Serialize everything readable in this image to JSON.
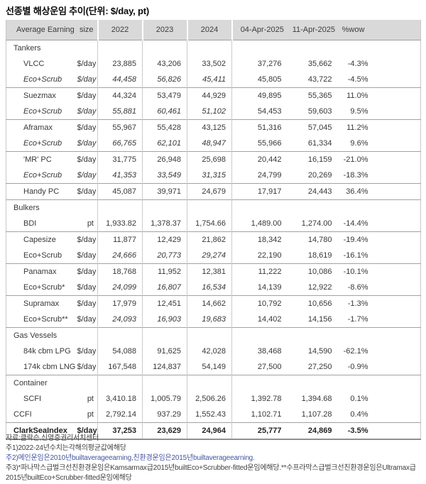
{
  "title": "선종별 해상운임 추이(단위: $/day, pt)",
  "colors": {
    "header_bg": "#d9d9d9",
    "body_text": "#383838",
    "group_line": "#a2a2a2",
    "note2_text": "#44549e"
  },
  "table": {
    "header": {
      "col_label": "Average Earning",
      "col_size": "size",
      "col_2022": "2022",
      "col_2023": "2023",
      "col_2024": "2024",
      "col_date1": "04-Apr-2025",
      "col_date2": "11-Apr-2025",
      "col_wow": "%wow"
    },
    "rows": [
      {
        "section": true,
        "label": "Tankers"
      },
      {
        "label": "VLCC",
        "unit": "$/day",
        "indent": 1,
        "values": [
          "23,885",
          "43,206",
          "33,502",
          "37,276",
          "35,662",
          "-4.3%"
        ]
      },
      {
        "label": "Eco+Scrub",
        "unit": "$/day",
        "indent": 1,
        "italic_label": true,
        "italic_values": true,
        "values": [
          "44,458",
          "56,826",
          "45,411",
          "45,805",
          "43,722",
          "-4.5%"
        ]
      },
      {
        "label": "Suezmax",
        "unit": "$/day",
        "indent": 1,
        "line": true,
        "values": [
          "44,324",
          "53,479",
          "44,929",
          "49,895",
          "55,365",
          "11.0%"
        ]
      },
      {
        "label": "Eco+Scrub",
        "unit": "$/day",
        "indent": 1,
        "italic_label": true,
        "italic_values": true,
        "values": [
          "55,881",
          "60,461",
          "51,102",
          "54,453",
          "59,603",
          "9.5%"
        ]
      },
      {
        "label": "Aframax",
        "unit": "$/day",
        "indent": 1,
        "line": true,
        "values": [
          "55,967",
          "55,428",
          "43,125",
          "51,316",
          "57,045",
          "11.2%"
        ]
      },
      {
        "label": "Eco+Scrub",
        "unit": "$/day",
        "indent": 1,
        "italic_label": true,
        "italic_values": true,
        "values": [
          "66,765",
          "62,101",
          "48,947",
          "55,966",
          "61,334",
          "9.6%"
        ]
      },
      {
        "label": "'MR' PC",
        "unit": "$/day",
        "indent": 1,
        "line": true,
        "values": [
          "31,775",
          "26,948",
          "25,698",
          "20,442",
          "16,159",
          "-21.0%"
        ]
      },
      {
        "label": "Eco+Scrub",
        "unit": "$/day",
        "indent": 1,
        "italic_label": true,
        "italic_values": true,
        "values": [
          "41,353",
          "33,549",
          "31,315",
          "24,799",
          "20,269",
          "-18.3%"
        ]
      },
      {
        "label": "Handy PC",
        "unit": "$/day",
        "indent": 1,
        "line": true,
        "values": [
          "45,087",
          "39,971",
          "24,679",
          "17,917",
          "24,443",
          "36.4%"
        ]
      },
      {
        "section": true,
        "label": "Bulkers",
        "line": true
      },
      {
        "label": "BDI",
        "unit": "pt",
        "indent": 1,
        "values": [
          "1,933.82",
          "1,378.37",
          "1,754.66",
          "1,489.00",
          "1,274.00",
          "-14.4%"
        ]
      },
      {
        "label": "Capesize",
        "unit": "$/day",
        "indent": 1,
        "line": true,
        "values": [
          "11,877",
          "12,429",
          "21,862",
          "18,342",
          "14,780",
          "-19.4%"
        ]
      },
      {
        "label": "Eco+Scrub",
        "unit": "$/day",
        "indent": 1,
        "italic_values": true,
        "values": [
          "24,666",
          "20,773",
          "29,274",
          "22,190",
          "18,619",
          "-16.1%"
        ]
      },
      {
        "label": "Panamax",
        "unit": "$/day",
        "indent": 1,
        "line": true,
        "values": [
          "18,768",
          "11,952",
          "12,381",
          "11,222",
          "10,086",
          "-10.1%"
        ]
      },
      {
        "label": "Eco+Scrub*",
        "unit": "$/day",
        "indent": 1,
        "italic_values": true,
        "values": [
          "24,099",
          "16,807",
          "16,534",
          "14,139",
          "12,922",
          "-8.6%"
        ]
      },
      {
        "label": "Supramax",
        "unit": "$/day",
        "indent": 1,
        "line": true,
        "values": [
          "17,979",
          "12,451",
          "14,662",
          "10,792",
          "10,656",
          "-1.3%"
        ]
      },
      {
        "label": "Eco+Scrub**",
        "unit": "$/day",
        "indent": 1,
        "italic_values": true,
        "values": [
          "24,093",
          "16,903",
          "19,683",
          "14,402",
          "14,156",
          "-1.7%"
        ]
      },
      {
        "section": true,
        "label": "Gas Vessels",
        "line": true
      },
      {
        "label": "84k cbm LPG",
        "unit": "$/day",
        "indent": 1,
        "values": [
          "54,088",
          "91,625",
          "42,028",
          "38,468",
          "14,590",
          "-62.1%"
        ]
      },
      {
        "label": "174k cbm LNG",
        "unit": "$/day",
        "indent": 1,
        "values": [
          "167,548",
          "124,837",
          "54,149",
          "27,500",
          "27,250",
          "-0.9%"
        ]
      },
      {
        "section": true,
        "label": "Container",
        "line": true
      },
      {
        "label": "SCFI",
        "unit": "pt",
        "indent": 1,
        "values": [
          "3,410.18",
          "1,005.79",
          "2,506.26",
          "1,392.78",
          "1,394.68",
          "0.1%"
        ]
      },
      {
        "label": "CCFI",
        "unit": "pt",
        "indent": 0,
        "values": [
          "2,792.14",
          "937.29",
          "1,552.43",
          "1,102.71",
          "1,107.28",
          "0.4%"
        ]
      },
      {
        "label": "ClarkSeaIndex",
        "unit": "$/day",
        "indent": 0,
        "bold": true,
        "line": true,
        "values": [
          "37,253",
          "23,629",
          "24,964",
          "25,777",
          "24,869",
          "-3.5%"
        ]
      }
    ]
  },
  "footer": {
    "source": "자료:클락슨,신영증권리서치센터",
    "note1": "주1)2022-24년수치는각해의평균값에해당",
    "note2": "주2)메인운임은2010년builtaverageearning,친환경운임은2015년builtaverageearning.",
    "note3": "주3)*파나막스급벌크선친환경운임은Kamsarmax급2015년builtEco+Scrubber-fitted운임에해당.**수프라막스급벌크선친환경운임은Ultramax급2015년builtEco+Scrubber-fitted운임에해당"
  }
}
